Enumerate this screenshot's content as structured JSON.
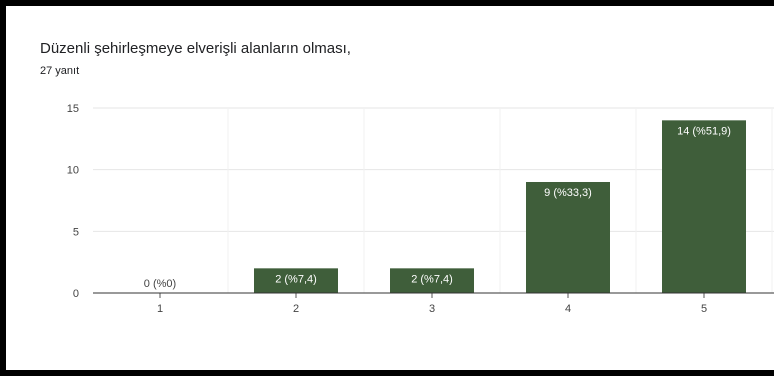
{
  "chart_data": {
    "type": "bar",
    "title": "Düzenli şehirleşmeye elverişli alanların olması,",
    "subtitle": "27 yanıt",
    "categories": [
      "1",
      "2",
      "3",
      "4",
      "5"
    ],
    "values": [
      0,
      2,
      2,
      9,
      14
    ],
    "data_labels": [
      "0 (%0)",
      "2 (%7,4)",
      "2 (%7,4)",
      "9 (%33,3)",
      "14 (%51,9)"
    ],
    "yticks": [
      0,
      5,
      10,
      15
    ],
    "ylim": [
      0,
      15
    ],
    "grid": true,
    "legend": "none",
    "bar_color": "#3f5e3a",
    "label_color_inside": "#ffffff",
    "label_color_outside": "#444444",
    "grid_color": "#e6e6e6",
    "axis_color": "#333333"
  }
}
